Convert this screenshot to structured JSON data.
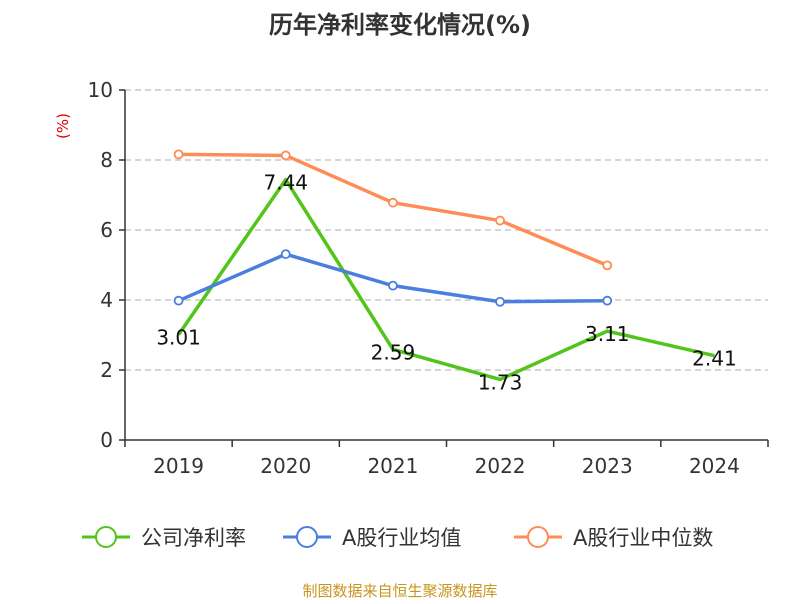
{
  "chart_data": {
    "type": "line",
    "title": "历年净利率变化情况(%)",
    "ylabel": "(%)",
    "xlabel": "",
    "categories": [
      "2019",
      "2020",
      "2021",
      "2022",
      "2023",
      "2024"
    ],
    "ylim": [
      0,
      10
    ],
    "yticks": [
      0,
      2,
      4,
      6,
      8,
      10
    ],
    "grid": true,
    "legend_position": "bottom",
    "series": [
      {
        "name": "公司净利率",
        "color": "#52c41a",
        "values": [
          3.01,
          7.44,
          2.59,
          1.73,
          3.11,
          2.41
        ],
        "labels": [
          "3.01",
          "7.44",
          "2.59",
          "1.73",
          "3.11",
          "2.41"
        ],
        "markers": false
      },
      {
        "name": "A股行业均值",
        "color": "#4a7fe0",
        "values": [
          3.98,
          5.31,
          4.41,
          3.95,
          3.98,
          null
        ],
        "markers": true
      },
      {
        "name": "A股行业中位数",
        "color": "#ff8c55",
        "values": [
          8.16,
          8.13,
          6.78,
          6.27,
          4.99,
          null
        ],
        "markers": true
      }
    ]
  },
  "footer": {
    "source": "制图数据来自恒生聚源数据库",
    "color": "#c8961e"
  }
}
